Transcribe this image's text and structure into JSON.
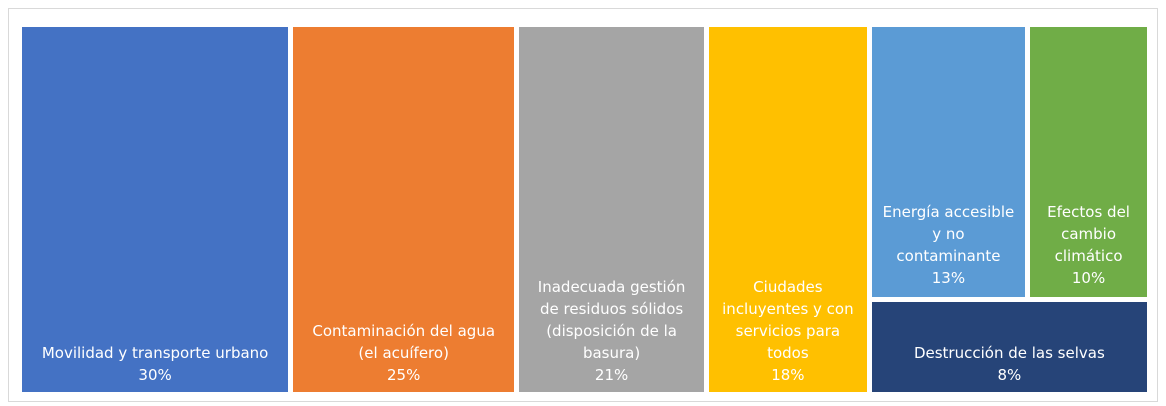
{
  "chart_data": {
    "type": "treemap",
    "categories": [
      "Movilidad y transporte urbano",
      "Contaminación del agua (el acuífero)",
      "Inadecuada gestión de residuos sólidos (disposición de la basura)",
      "Ciudades incluyentes y con servicios para todos",
      "Energía accesible y no contaminante",
      "Efectos del cambio climático",
      "Destrucción de las selvas"
    ],
    "values": [
      30,
      25,
      21,
      18,
      13,
      10,
      8
    ],
    "value_labels": [
      "30%",
      "25%",
      "21%",
      "18%",
      "13%",
      "10%",
      "8%"
    ],
    "colors": [
      "#4472c4",
      "#ed7d31",
      "#a5a5a5",
      "#ffc000",
      "#5b9bd5",
      "#70ad47",
      "#264478"
    ]
  }
}
